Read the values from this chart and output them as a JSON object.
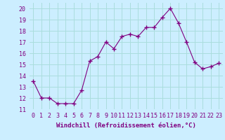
{
  "x": [
    0,
    1,
    2,
    3,
    4,
    5,
    6,
    7,
    8,
    9,
    10,
    11,
    12,
    13,
    14,
    15,
    16,
    17,
    18,
    19,
    20,
    21,
    22,
    23
  ],
  "y": [
    13.5,
    12.0,
    12.0,
    11.5,
    11.5,
    11.5,
    12.7,
    15.3,
    15.7,
    17.0,
    16.4,
    17.5,
    17.7,
    17.5,
    18.3,
    18.3,
    19.2,
    20.0,
    18.7,
    17.0,
    15.2,
    14.6,
    14.8,
    15.1
  ],
  "line_color": "#800080",
  "marker": "+",
  "marker_size": 4,
  "bg_color": "#cceeff",
  "grid_color": "#aadddd",
  "xlabel": "Windchill (Refroidissement éolien,°C)",
  "xlabel_fontsize": 6.5,
  "tick_fontsize": 6.0,
  "ylim": [
    11,
    20.5
  ],
  "yticks": [
    11,
    12,
    13,
    14,
    15,
    16,
    17,
    18,
    19,
    20
  ],
  "xticks": [
    0,
    1,
    2,
    3,
    4,
    5,
    6,
    7,
    8,
    9,
    10,
    11,
    12,
    13,
    14,
    15,
    16,
    17,
    18,
    19,
    20,
    21,
    22,
    23
  ]
}
